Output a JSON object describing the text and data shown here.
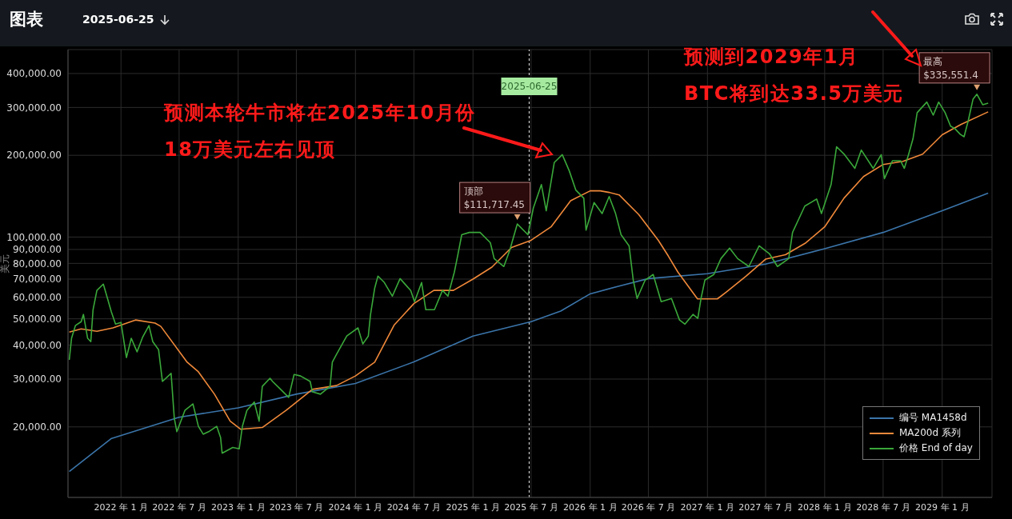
{
  "chart_data": {
    "type": "line",
    "title": "图表",
    "subtitle": "2025-06-25",
    "ylabel": "美元",
    "log": true,
    "grid": true,
    "legend": "bottom right",
    "xlim": [
      "2021-07-20",
      "2029-06-05"
    ],
    "xticks": [
      {
        "value": "2022-01-01",
        "label": "2022 年 1 月"
      },
      {
        "value": "2022-07-01",
        "label": "2022 年 7 月"
      },
      {
        "value": "2023-01-01",
        "label": "2023 年 1 月"
      },
      {
        "value": "2023-07-01",
        "label": "2023 年 7 月"
      },
      {
        "value": "2024-01-01",
        "label": "2024 年 1 月"
      },
      {
        "value": "2024-07-01",
        "label": "2024 年 7 月"
      },
      {
        "value": "2025-01-01",
        "label": "2025 年 1 月"
      },
      {
        "value": "2025-07-01",
        "label": "2025 年 7 月"
      },
      {
        "value": "2026-01-01",
        "label": "2026 年 1 月"
      },
      {
        "value": "2026-07-01",
        "label": "2026 年 7 月"
      },
      {
        "value": "2027-01-01",
        "label": "2027 年 1 月"
      },
      {
        "value": "2027-07-01",
        "label": "2027 年 7 月"
      },
      {
        "value": "2028-01-01",
        "label": "2028 年 1 月"
      },
      {
        "value": "2028-07-01",
        "label": "2028 年 7 月"
      },
      {
        "value": "2029-01-01",
        "label": "2029 年 1 月"
      }
    ],
    "ylim": [
      11000,
      490000
    ],
    "yticks": [
      {
        "value": 20000,
        "label": "20,000.00"
      },
      {
        "value": 30000,
        "label": "30,000.00"
      },
      {
        "value": 40000,
        "label": "40,000.00"
      },
      {
        "value": 50000,
        "label": "50,000.00"
      },
      {
        "value": 60000,
        "label": "60,000.00"
      },
      {
        "value": 70000,
        "label": "70,000.00"
      },
      {
        "value": 80000,
        "label": "80,000.00"
      },
      {
        "value": 90000,
        "label": "90,000.00"
      },
      {
        "value": 100000,
        "label": "100,000.00"
      },
      {
        "value": 200000,
        "label": "200,000.00"
      },
      {
        "value": 300000,
        "label": "300,000.00"
      },
      {
        "value": 400000,
        "label": "400,000.00"
      }
    ],
    "series": [
      {
        "name": "编号 MA1458d",
        "color": "#3b75aa",
        "x": [
          "2021-07-24",
          "2021-12-01",
          "2022-07-01",
          "2023-01-01",
          "2023-07-01",
          "2024-01-01",
          "2024-07-01",
          "2025-01-01",
          "2025-07-01",
          "2025-10-01",
          "2026-01-01",
          "2026-04-01",
          "2026-07-01",
          "2027-01-01",
          "2027-07-01",
          "2028-01-01",
          "2028-07-01",
          "2029-01-01",
          "2029-05-24"
        ],
        "values": [
          13700,
          18100,
          21700,
          23500,
          26400,
          28900,
          34700,
          43200,
          48800,
          53400,
          61800,
          66000,
          70300,
          73300,
          79500,
          90600,
          104000,
          125000,
          145000
        ]
      },
      {
        "name": "MA200d 系列",
        "color": "#f0893a",
        "x": [
          "2021-07-24",
          "2021-08-30",
          "2021-10-18",
          "2021-12-07",
          "2022-02-15",
          "2022-04-17",
          "2022-05-05",
          "2022-07-26",
          "2022-08-30",
          "2022-10-19",
          "2022-12-07",
          "2023-01-09",
          "2023-03-17",
          "2023-05-30",
          "2023-08-20",
          "2023-11-03",
          "2024-01-01",
          "2024-03-01",
          "2024-05-01",
          "2024-07-01",
          "2024-09-01",
          "2024-11-01",
          "2025-01-01",
          "2025-03-01",
          "2025-05-01",
          "2025-07-01",
          "2025-09-01",
          "2025-11-01",
          "2026-01-01",
          "2026-02-01",
          "2026-03-01",
          "2026-04-01",
          "2026-06-01",
          "2026-08-01",
          "2026-09-01",
          "2026-10-01",
          "2026-12-01",
          "2027-02-01",
          "2027-03-01",
          "2027-05-01",
          "2027-07-01",
          "2027-09-01",
          "2027-11-01",
          "2028-01-01",
          "2028-03-01",
          "2028-05-01",
          "2028-07-01",
          "2028-09-01",
          "2028-11-01",
          "2029-01-01",
          "2029-03-01",
          "2029-05-24"
        ],
        "values": [
          44700,
          45900,
          45000,
          46300,
          49500,
          48200,
          46900,
          34600,
          31900,
          26400,
          21000,
          19600,
          19900,
          23000,
          27500,
          28400,
          30800,
          34600,
          47500,
          56900,
          63600,
          63600,
          70000,
          77500,
          91500,
          97300,
          109000,
          136000,
          148000,
          148000,
          146000,
          143000,
          121000,
          97300,
          85200,
          74300,
          59200,
          59200,
          62800,
          71800,
          82900,
          86100,
          94800,
          109000,
          139000,
          167000,
          185000,
          190000,
          202000,
          238000,
          260000,
          289000
        ]
      },
      {
        "name": "价格 End of day",
        "color": "#3aa83a",
        "x": [
          "2021-07-24",
          "2021-07-31",
          "2021-08-12",
          "2021-08-30",
          "2021-09-06",
          "2021-09-19",
          "2021-09-29",
          "2021-10-06",
          "2021-10-18",
          "2021-11-07",
          "2021-11-20",
          "2021-12-02",
          "2021-12-15",
          "2022-01-01",
          "2022-01-18",
          "2022-02-02",
          "2022-02-20",
          "2022-03-09",
          "2022-03-29",
          "2022-04-10",
          "2022-04-28",
          "2022-05-10",
          "2022-06-06",
          "2022-06-16",
          "2022-06-24",
          "2022-07-19",
          "2022-08-13",
          "2022-08-30",
          "2022-09-14",
          "2022-10-01",
          "2022-10-26",
          "2022-11-07",
          "2022-11-12",
          "2022-12-15",
          "2023-01-04",
          "2023-01-14",
          "2023-01-28",
          "2023-02-20",
          "2023-03-07",
          "2023-03-17",
          "2023-04-10",
          "2023-04-18",
          "2023-05-13",
          "2023-06-07",
          "2023-06-24",
          "2023-07-14",
          "2023-08-13",
          "2023-08-20",
          "2023-09-14",
          "2023-10-14",
          "2023-10-21",
          "2023-11-03",
          "2023-12-05",
          "2024-01-09",
          "2024-01-24",
          "2024-02-10",
          "2024-02-17",
          "2024-03-01",
          "2024-03-11",
          "2024-03-31",
          "2024-04-25",
          "2024-05-19",
          "2024-06-21",
          "2024-07-03",
          "2024-07-25",
          "2024-08-07",
          "2024-09-03",
          "2024-09-28",
          "2024-10-15",
          "2024-11-04",
          "2024-11-14",
          "2024-11-27",
          "2024-12-21",
          "2025-01-23",
          "2025-02-24",
          "2025-03-08",
          "2025-04-07",
          "2025-04-25",
          "2025-05-19",
          "2025-06-21",
          "2025-07-08",
          "2025-08-02",
          "2025-08-17",
          "2025-09-11",
          "2025-10-06",
          "2025-10-28",
          "2025-11-17",
          "2025-12-12",
          "2025-12-19",
          "2026-01-13",
          "2026-02-07",
          "2026-03-01",
          "2026-03-21",
          "2026-04-07",
          "2026-05-02",
          "2026-05-15",
          "2026-05-27",
          "2026-06-21",
          "2026-07-16",
          "2026-08-10",
          "2026-09-11",
          "2026-10-06",
          "2026-10-23",
          "2026-11-17",
          "2026-12-02",
          "2026-12-12",
          "2026-12-24",
          "2027-01-21",
          "2027-02-12",
          "2027-03-11",
          "2027-04-05",
          "2027-05-10",
          "2027-06-11",
          "2027-07-13",
          "2027-08-07",
          "2027-09-11",
          "2027-09-23",
          "2027-10-31",
          "2027-12-07",
          "2027-12-22",
          "2028-01-21",
          "2028-02-07",
          "2028-03-03",
          "2028-04-04",
          "2028-04-24",
          "2028-05-31",
          "2028-06-25",
          "2028-07-05",
          "2028-07-30",
          "2028-08-24",
          "2028-09-05",
          "2028-09-18",
          "2028-10-02",
          "2028-10-15",
          "2028-11-14",
          "2028-12-04",
          "2028-12-21",
          "2029-01-10",
          "2029-01-27",
          "2029-02-09",
          "2029-02-26",
          "2029-03-10",
          "2029-03-23",
          "2029-04-07",
          "2029-04-19",
          "2029-05-07",
          "2029-05-24"
        ],
        "values": [
          35300,
          42400,
          47200,
          48800,
          51900,
          42400,
          41200,
          54000,
          63600,
          67100,
          59400,
          53000,
          47800,
          48500,
          36000,
          42400,
          37800,
          42700,
          47200,
          41200,
          38500,
          29400,
          31500,
          21500,
          19200,
          23000,
          24300,
          20100,
          18800,
          19200,
          20100,
          18300,
          16000,
          16800,
          16600,
          20100,
          23000,
          24700,
          21000,
          28200,
          30200,
          29400,
          27500,
          25700,
          31200,
          30800,
          29400,
          26900,
          26400,
          28200,
          34600,
          37000,
          43200,
          46300,
          40400,
          43200,
          51900,
          64900,
          71800,
          68000,
          60600,
          70300,
          63600,
          57800,
          68000,
          54000,
          54000,
          63600,
          60600,
          74300,
          85000,
          102000,
          104000,
          104000,
          95300,
          83300,
          77900,
          89100,
          111717.45,
          102000,
          128000,
          156000,
          125000,
          188000,
          201000,
          175000,
          149000,
          139000,
          106000,
          134000,
          122000,
          141000,
          122000,
          102000,
          92800,
          69400,
          59400,
          69400,
          72800,
          57800,
          59400,
          49500,
          47800,
          51900,
          50200,
          59400,
          69400,
          72800,
          83300,
          91000,
          83300,
          77900,
          92800,
          86800,
          77900,
          83300,
          104000,
          130000,
          138000,
          122000,
          156000,
          215000,
          201000,
          179000,
          209000,
          179000,
          201000,
          164000,
          191000,
          191000,
          179000,
          201000,
          230000,
          287000,
          314000,
          281000,
          314000,
          287000,
          256000,
          251000,
          239000,
          234000,
          268000,
          322000,
          335551.4,
          307000,
          311000
        ]
      }
    ],
    "ref_lines": [
      {
        "axis": "x",
        "value": "2025-06-25",
        "label": "2025-06-25",
        "color": "#cccccc",
        "line_style": "dotted"
      }
    ],
    "annotations": [
      "预测本轮牛市将在2025年10月份\n18万美元左右见顶",
      "预测到2029年1月\nBTC将到达33.5万美元",
      {
        "text": "顶部\n$111,717.45",
        "x": "2025-05-19",
        "y": 111717.45
      },
      {
        "text": "最高\n$335,551.4",
        "x": "2029-04-19",
        "y": 335551.4
      }
    ]
  }
}
